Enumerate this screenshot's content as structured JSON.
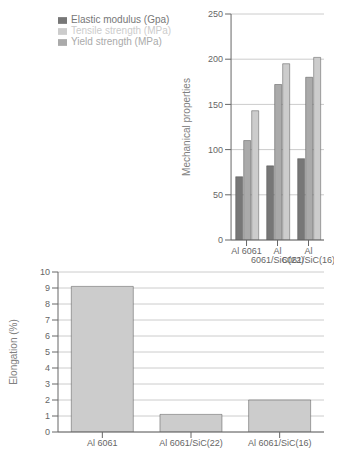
{
  "chart_data": [
    {
      "type": "bar",
      "categories": [
        "Al 6061",
        "Al 6061/SiC(22)",
        "Al 6061/SiC(16)"
      ],
      "series": [
        {
          "name": "Elastic modulus (Gpa)",
          "color": "#777777",
          "values": [
            70,
            82,
            90
          ]
        },
        {
          "name": "Yield strength (MPa)",
          "color": "#aaaaaa",
          "values": [
            110,
            172,
            180
          ]
        },
        {
          "name": "Tensile strength (MPa)",
          "color": "#cccccc",
          "values": [
            143,
            195,
            202
          ]
        }
      ],
      "ylabel": "Mechanical properties",
      "ylim": [
        0,
        250
      ],
      "yticks": [
        0,
        50,
        100,
        150,
        200,
        250
      ],
      "grid": true,
      "legend": "upper left"
    },
    {
      "type": "bar",
      "categories": [
        "Al 6061",
        "Al 6061/SiC(22)",
        "Al 6061/SiC(16)"
      ],
      "values": [
        9.1,
        1.1,
        2.0
      ],
      "color": "#cccccc",
      "ylabel": "Elongation (%)",
      "ylim": [
        0,
        10
      ],
      "yticks": [
        0,
        1,
        2,
        3,
        4,
        5,
        6,
        7,
        8,
        9,
        10
      ],
      "grid": true
    }
  ]
}
